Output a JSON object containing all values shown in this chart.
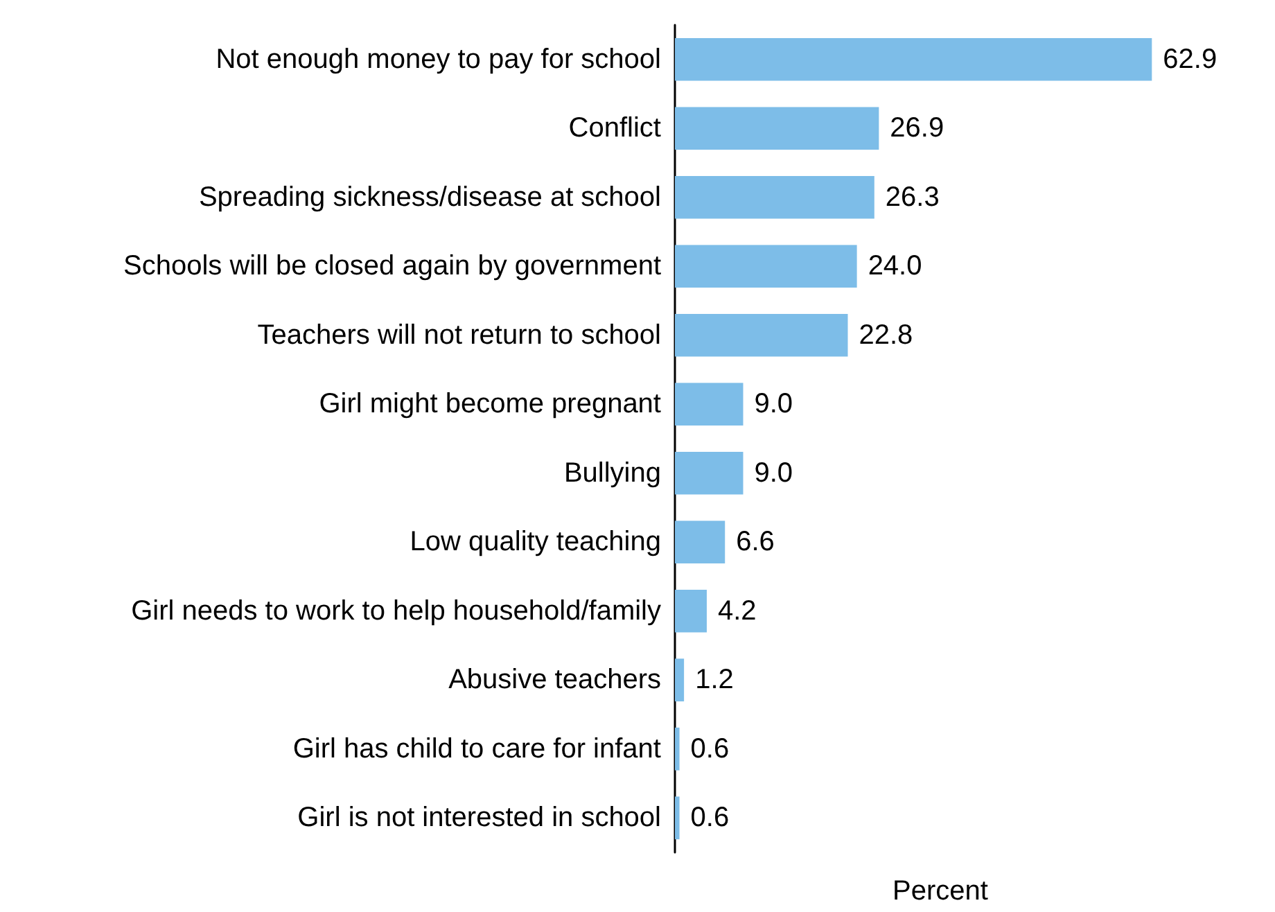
{
  "chart_data": {
    "type": "bar",
    "orientation": "horizontal",
    "xlabel": "Percent",
    "categories": [
      "Not enough money to pay for school",
      "Conflict",
      "Spreading sickness/disease at school",
      "Schools will be closed again by government",
      "Teachers will not return to school",
      "Girl might become pregnant",
      "Bullying",
      "Low quality teaching",
      "Girl needs to work to help household/family",
      "Abusive teachers",
      "Girl has child to care for infant",
      "Girl is not interested in school"
    ],
    "values": [
      62.9,
      26.9,
      26.3,
      24.0,
      22.8,
      9.0,
      9.0,
      6.6,
      4.2,
      1.2,
      0.6,
      0.6
    ],
    "value_labels": [
      "62.9",
      "26.9",
      "26.3",
      "24.0",
      "22.8",
      "9.0",
      "9.0",
      "6.6",
      "4.2",
      "1.2",
      "0.6",
      "0.6"
    ],
    "color": "#7dbde8",
    "tick_labels": "y"
  }
}
